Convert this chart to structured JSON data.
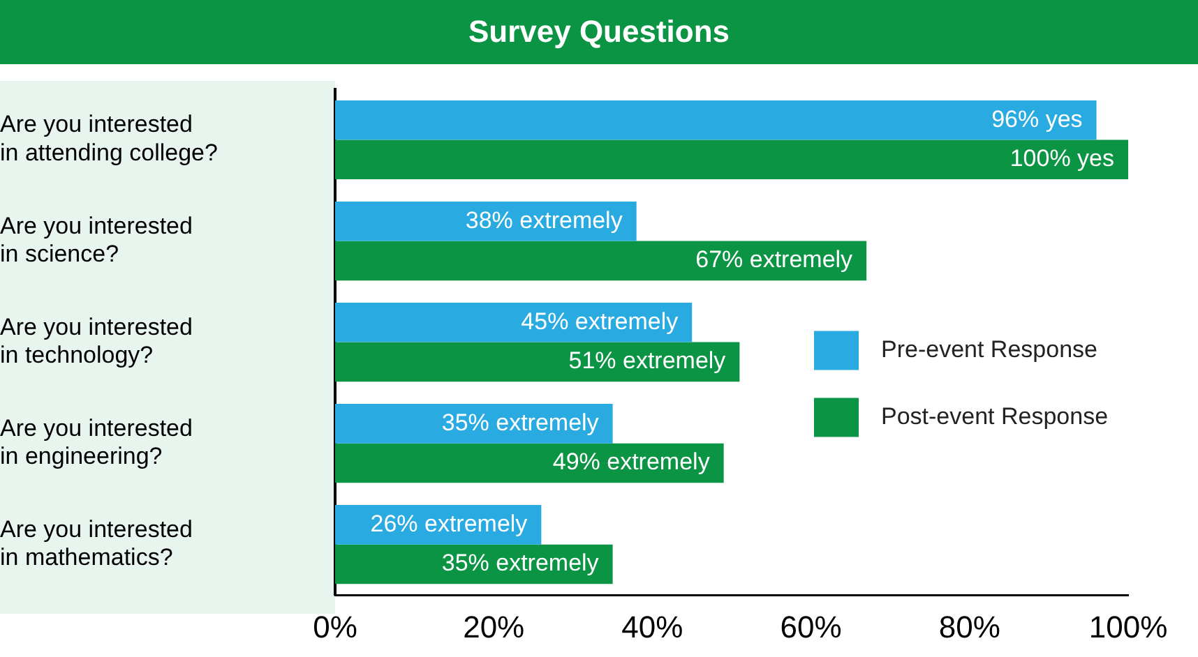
{
  "chart_data": {
    "type": "bar",
    "orientation": "horizontal",
    "title": "Survey Questions",
    "categories": [
      "Are you interested\nin attending college?",
      "Are you interested\nin science?",
      "Are you interested\nin technology?",
      "Are you interested\nin engineering?",
      "Are you interested\nin mathematics?"
    ],
    "series": [
      {
        "name": "Pre-event Response",
        "color": "#29abe2",
        "values": [
          96,
          38,
          45,
          35,
          26
        ],
        "value_labels": [
          "96% yes",
          "38% extremely",
          "45% extremely",
          "35% extremely",
          "26% extremely"
        ]
      },
      {
        "name": "Post-event Response",
        "color": "#0b9444",
        "values": [
          100,
          67,
          51,
          49,
          35
        ],
        "value_labels": [
          "100% yes",
          "67% extremely",
          "51% extremely",
          "49% extremely",
          "35% extremely"
        ]
      }
    ],
    "xlim": [
      0,
      100
    ],
    "xticks": [
      {
        "value": 0,
        "label": "0%"
      },
      {
        "value": 20,
        "label": "20%"
      },
      {
        "value": 40,
        "label": "40%"
      },
      {
        "value": 60,
        "label": "60%"
      },
      {
        "value": 80,
        "label": "80%"
      },
      {
        "value": 100,
        "label": "100%"
      }
    ],
    "grid": false,
    "legend": "right"
  }
}
